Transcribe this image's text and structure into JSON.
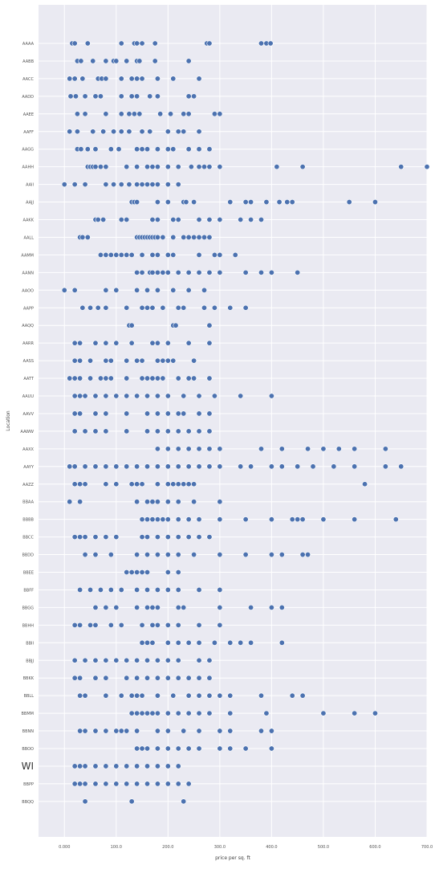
{
  "chart_data": {
    "type": "scatter",
    "title": "",
    "xlabel": "price per sq. ft",
    "ylabel": "Location",
    "xlim": [
      -50,
      700
    ],
    "xticks": [
      0,
      100,
      200,
      300,
      400,
      500,
      600,
      700
    ],
    "xtick_labels": [
      "0.000",
      "100.0",
      "200.0",
      "300.0",
      "400.0",
      "500.0",
      "600.0",
      "700.0"
    ],
    "grid": true,
    "point_color": "#4c72b0",
    "background_color": "#eaeaf2",
    "grid_color": "#ffffff",
    "categories": [
      "AAAA",
      "AABB",
      "AACC",
      "AADD",
      "AAEE",
      "AAFF",
      "AAGG",
      "AAHH",
      "AAII",
      "AAJJ",
      "AAKK",
      "AALL",
      "AAMM",
      "AANN",
      "AAOO",
      "AAPP",
      "AAQQ",
      "AARR",
      "AASS",
      "AATT",
      "AAUU",
      "AAVV",
      "AAWW",
      "AAXX",
      "AAYY",
      "AAZZ",
      "BBAA",
      "BBBB",
      "BBCC",
      "BBDD",
      "BBEE",
      "BBFF",
      "BBGG",
      "BBHH",
      "BBII",
      "BBJJ",
      "BBKK",
      "BBLL",
      "BBMM",
      "BBNN",
      "BBOO",
      "WI",
      "BBPP",
      "BBQQ"
    ],
    "highlight_label": "WI",
    "points": [
      [
        15,
        20,
        45,
        110,
        135,
        140,
        150,
        175,
        275,
        280,
        380,
        390,
        398
      ],
      [
        25,
        32,
        55,
        80,
        95,
        100,
        120,
        140,
        145,
        175,
        240
      ],
      [
        10,
        20,
        35,
        65,
        72,
        80,
        110,
        130,
        140,
        150,
        180,
        210,
        260
      ],
      [
        12,
        22,
        40,
        60,
        70,
        110,
        130,
        140,
        165,
        180,
        240,
        250
      ],
      [
        25,
        40,
        80,
        110,
        125,
        135,
        145,
        185,
        205,
        230,
        240,
        290,
        300
      ],
      [
        10,
        25,
        55,
        75,
        95,
        110,
        125,
        150,
        165,
        200,
        220,
        230,
        260
      ],
      [
        25,
        32,
        45,
        60,
        90,
        105,
        140,
        150,
        160,
        180,
        200,
        210,
        240,
        260,
        280
      ],
      [
        45,
        50,
        55,
        60,
        70,
        80,
        120,
        140,
        160,
        170,
        180,
        200,
        220,
        245,
        260,
        270,
        280,
        300,
        410,
        460,
        650,
        700
      ],
      [
        0,
        20,
        40,
        80,
        95,
        110,
        125,
        140,
        150,
        160,
        170,
        180,
        200,
        220
      ],
      [
        130,
        135,
        140,
        180,
        200,
        230,
        235,
        250,
        320,
        350,
        360,
        390,
        415,
        430,
        440,
        550,
        600
      ],
      [
        60,
        65,
        75,
        110,
        120,
        170,
        180,
        210,
        220,
        260,
        280,
        300,
        340,
        360,
        380
      ],
      [
        30,
        35,
        45,
        140,
        145,
        150,
        155,
        160,
        165,
        170,
        175,
        180,
        190,
        210,
        230,
        240,
        250,
        260,
        270,
        280
      ],
      [
        70,
        80,
        90,
        100,
        110,
        120,
        130,
        150,
        170,
        180,
        200,
        210,
        260,
        290,
        300,
        330
      ],
      [
        140,
        150,
        165,
        170,
        180,
        190,
        200,
        220,
        240,
        260,
        280,
        300,
        350,
        380,
        400,
        450
      ],
      [
        0,
        20,
        80,
        100,
        140,
        160,
        180,
        210,
        240,
        270
      ],
      [
        35,
        50,
        65,
        80,
        120,
        150,
        160,
        170,
        190,
        220,
        230,
        270,
        290,
        320,
        350
      ],
      [
        125,
        130,
        210,
        215,
        280
      ],
      [
        20,
        30,
        60,
        80,
        100,
        130,
        170,
        180,
        200,
        240,
        280
      ],
      [
        20,
        30,
        50,
        80,
        90,
        120,
        140,
        150,
        180,
        190,
        200,
        210,
        250
      ],
      [
        10,
        20,
        30,
        50,
        70,
        80,
        90,
        120,
        150,
        160,
        170,
        180,
        190,
        220,
        240,
        250,
        280
      ],
      [
        20,
        30,
        40,
        60,
        80,
        100,
        120,
        140,
        160,
        180,
        200,
        230,
        260,
        290,
        340,
        400
      ],
      [
        20,
        30,
        60,
        80,
        120,
        160,
        180,
        200,
        220,
        230,
        260,
        280
      ],
      [
        20,
        40,
        60,
        80,
        120,
        160,
        180,
        200,
        220,
        240,
        260,
        280
      ],
      [
        180,
        200,
        220,
        240,
        260,
        280,
        300,
        380,
        420,
        470,
        500,
        530,
        560,
        620
      ],
      [
        10,
        20,
        40,
        60,
        80,
        100,
        120,
        140,
        160,
        180,
        200,
        220,
        240,
        260,
        280,
        300,
        340,
        360,
        400,
        420,
        450,
        480,
        520,
        560,
        620,
        650
      ],
      [
        20,
        30,
        40,
        80,
        100,
        130,
        140,
        150,
        180,
        200,
        210,
        220,
        230,
        240,
        250,
        580
      ],
      [
        10,
        30,
        140,
        160,
        170,
        180,
        200,
        220,
        250,
        300
      ],
      [
        150,
        160,
        170,
        180,
        190,
        200,
        220,
        240,
        260,
        300,
        350,
        400,
        440,
        450,
        460,
        500,
        560,
        640
      ],
      [
        20,
        30,
        40,
        60,
        80,
        100,
        150,
        160,
        180,
        200,
        220,
        240,
        260,
        280
      ],
      [
        40,
        60,
        90,
        140,
        160,
        180,
        200,
        220,
        250,
        300,
        350,
        400,
        420,
        460,
        470
      ],
      [
        120,
        130,
        140,
        150,
        160,
        200,
        220
      ],
      [
        30,
        50,
        70,
        90,
        110,
        140,
        160,
        180,
        200,
        220,
        260,
        300
      ],
      [
        60,
        80,
        100,
        140,
        160,
        170,
        180,
        220,
        230,
        300,
        360,
        400,
        420
      ],
      [
        20,
        30,
        50,
        60,
        90,
        110,
        150,
        170,
        180,
        200,
        220,
        260,
        300
      ],
      [
        150,
        160,
        170,
        200,
        220,
        240,
        260,
        290,
        320,
        340,
        360,
        420
      ],
      [
        20,
        40,
        60,
        80,
        100,
        120,
        140,
        160,
        180,
        200,
        220,
        260,
        280
      ],
      [
        20,
        30,
        60,
        80,
        120,
        140,
        160,
        180,
        200,
        220,
        240,
        260,
        280
      ],
      [
        30,
        40,
        80,
        110,
        130,
        140,
        150,
        180,
        210,
        240,
        260,
        280,
        300,
        320,
        380,
        440,
        460
      ],
      [
        130,
        140,
        150,
        160,
        170,
        180,
        200,
        220,
        240,
        260,
        280,
        320,
        390,
        500,
        560,
        600
      ],
      [
        30,
        40,
        60,
        80,
        100,
        110,
        120,
        140,
        180,
        200,
        230,
        260,
        300,
        320,
        380,
        400
      ],
      [
        140,
        150,
        160,
        180,
        200,
        220,
        240,
        260,
        300,
        320,
        350,
        400
      ],
      [
        20,
        30,
        40,
        60,
        80,
        100,
        120,
        140,
        160,
        180,
        200,
        220
      ],
      [
        20,
        30,
        40,
        60,
        80,
        100,
        120,
        140,
        160,
        180,
        200,
        220,
        240
      ],
      [
        40,
        130,
        230
      ]
    ]
  }
}
